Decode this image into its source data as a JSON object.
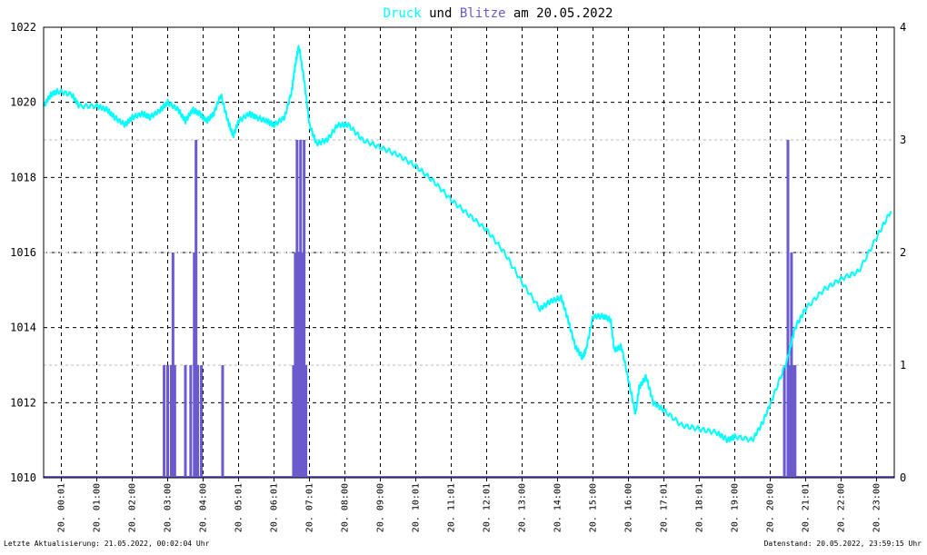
{
  "title": {
    "part1": "Druck",
    "part2": " und ",
    "part3": "Blitze",
    "part4": " am 20.05.2022"
  },
  "colors": {
    "pressure": "#00ffff",
    "lightning": "#6a5acd",
    "grid": "#000000",
    "background": "#ffffff"
  },
  "footer": {
    "left": "Letzte Aktualisierung: 21.05.2022, 00:02:04 Uhr",
    "right": "Datenstand: 20.05.2022, 23:59:15 Uhr"
  },
  "chart_data": {
    "type": "line",
    "grid": true,
    "legend": "none",
    "title": "Druck und Blitze am 20.05.2022",
    "y_left": {
      "min": 1010,
      "max": 1022,
      "ticks": [
        "1010",
        "1012",
        "1014",
        "1016",
        "1018",
        "1020",
        "1022"
      ]
    },
    "y_right": {
      "min": 0,
      "max": 4,
      "ticks": [
        "0",
        "1",
        "2",
        "3",
        "4"
      ]
    },
    "x_range_hours": [
      0,
      24
    ],
    "x_ticks": [
      "20. 00:01",
      "20. 01:00",
      "20. 02:00",
      "20. 03:00",
      "20. 04:00",
      "20. 05:01",
      "20. 06:01",
      "20. 07:01",
      "20. 08:00",
      "20. 09:00",
      "20. 10:01",
      "20. 11:01",
      "20. 12:01",
      "20. 13:00",
      "20. 14:00",
      "20. 15:00",
      "20. 16:00",
      "20. 17:01",
      "20. 18:01",
      "20. 19:00",
      "20. 20:00",
      "20. 21:01",
      "20. 22:00",
      "20. 23:00"
    ],
    "series": [
      {
        "name": "Druck",
        "axis": "left",
        "x": [
          0.0,
          0.2,
          0.4,
          0.8,
          1.0,
          1.5,
          1.8,
          2.0,
          2.3,
          2.5,
          2.8,
          3.0,
          3.3,
          3.5,
          3.8,
          4.0,
          4.2,
          4.4,
          4.6,
          4.8,
          5.0,
          5.2,
          5.35,
          5.5,
          5.8,
          6.0,
          6.3,
          6.5,
          6.8,
          7.0,
          7.1,
          7.2,
          7.35,
          7.5,
          7.7,
          8.0,
          8.3,
          8.6,
          9.0,
          9.5,
          10.0,
          10.5,
          11.0,
          11.5,
          12.0,
          12.5,
          13.0,
          13.5,
          14.0,
          14.3,
          14.6,
          14.8,
          15.0,
          15.2,
          15.3,
          15.5,
          15.8,
          16.0,
          16.1,
          16.3,
          16.5,
          16.7,
          16.8,
          17.0,
          17.2,
          17.5,
          18.0,
          18.5,
          19.0,
          19.3,
          19.5,
          20.0,
          20.3,
          20.6,
          21.0,
          21.2,
          21.5,
          22.0,
          22.5,
          23.0,
          23.5,
          23.9
        ],
        "y": [
          1019.9,
          1020.2,
          1020.3,
          1020.2,
          1019.9,
          1019.9,
          1019.8,
          1019.6,
          1019.4,
          1019.6,
          1019.7,
          1019.6,
          1019.8,
          1020.0,
          1019.8,
          1019.5,
          1019.8,
          1019.7,
          1019.5,
          1019.7,
          1020.2,
          1019.5,
          1019.1,
          1019.5,
          1019.7,
          1019.6,
          1019.5,
          1019.4,
          1019.6,
          1020.3,
          1021.0,
          1021.5,
          1020.6,
          1019.4,
          1018.9,
          1019.0,
          1019.4,
          1019.4,
          1019.0,
          1018.8,
          1018.6,
          1018.3,
          1017.9,
          1017.4,
          1017.0,
          1016.6,
          1016.0,
          1015.2,
          1014.5,
          1014.7,
          1014.8,
          1014.2,
          1013.5,
          1013.2,
          1013.4,
          1014.3,
          1014.3,
          1014.2,
          1013.4,
          1013.5,
          1012.6,
          1011.7,
          1012.4,
          1012.7,
          1012.0,
          1011.8,
          1011.4,
          1011.3,
          1011.2,
          1011.0,
          1011.1,
          1011.0,
          1011.5,
          1012.2,
          1013.2,
          1014.0,
          1014.5,
          1015.0,
          1015.3,
          1015.5,
          1016.4,
          1017.1
        ]
      },
      {
        "name": "Blitze",
        "axis": "right",
        "type": "bar",
        "x": [
          3.4,
          3.5,
          3.6,
          3.65,
          3.7,
          4.0,
          4.15,
          4.25,
          4.3,
          4.35,
          4.45,
          5.05,
          7.05,
          7.1,
          7.15,
          7.2,
          7.25,
          7.3,
          7.35,
          7.4,
          20.9,
          21.0,
          21.05,
          21.1,
          21.15,
          21.2
        ],
        "y": [
          1,
          1,
          1,
          2,
          1,
          1,
          1,
          2,
          3,
          1,
          1,
          1,
          1,
          2,
          3,
          2,
          3,
          2,
          3,
          1,
          1,
          3,
          1,
          2,
          1,
          1
        ]
      }
    ]
  }
}
